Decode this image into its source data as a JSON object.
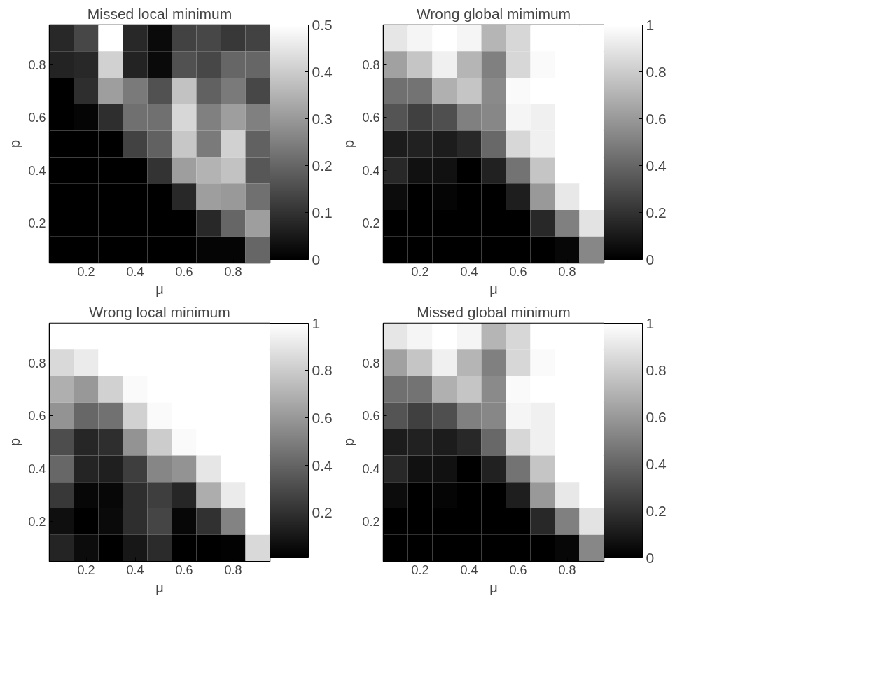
{
  "chart_data": [
    {
      "type": "heatmap",
      "title": "Missed local minimum",
      "xlabel": "μ",
      "ylabel": "p",
      "categories": [
        null,
        "0.2",
        null,
        "0.4",
        null,
        "0.6",
        null,
        "0.8",
        null
      ],
      "y_categories": [
        null,
        "0.8",
        null,
        "0.6",
        null,
        "0.4",
        null,
        "0.2",
        null
      ],
      "clim": [
        0,
        0.5
      ],
      "cticks": [
        0,
        0.1,
        0.2,
        0.3,
        0.4,
        0.5
      ],
      "cells": [
        [
          0.08,
          0.14,
          0.5,
          0.08,
          0.02,
          0.13,
          0.14,
          0.11,
          0.13
        ],
        [
          0.07,
          0.08,
          0.41,
          0.07,
          0.02,
          0.16,
          0.14,
          0.2,
          0.2
        ],
        [
          0,
          0.09,
          0.31,
          0.24,
          0.16,
          0.38,
          0.19,
          0.24,
          0.14
        ],
        [
          0,
          0.01,
          0.09,
          0.22,
          0.22,
          0.42,
          0.25,
          0.31,
          0.25
        ],
        [
          0,
          0,
          0,
          0.13,
          0.19,
          0.39,
          0.24,
          0.41,
          0.19
        ],
        [
          0,
          0,
          0,
          0,
          0.1,
          0.31,
          0.35,
          0.38,
          0.17
        ],
        [
          0,
          0,
          0,
          0,
          0,
          0.08,
          0.31,
          0.3,
          0.22
        ],
        [
          0,
          0,
          0,
          0,
          0,
          0,
          0.08,
          0.2,
          0.31
        ],
        [
          0,
          0,
          0,
          0,
          0,
          0,
          0.01,
          0.01,
          0.2
        ]
      ]
    },
    {
      "type": "heatmap",
      "title": "Wrong global mimimum",
      "xlabel": "μ",
      "ylabel": "p",
      "categories": [
        null,
        "0.2",
        null,
        "0.4",
        null,
        "0.6",
        null,
        "0.8",
        null
      ],
      "y_categories": [
        null,
        "0.8",
        null,
        "0.6",
        null,
        "0.4",
        null,
        "0.2",
        null
      ],
      "clim": [
        0,
        1
      ],
      "cticks": [
        0,
        0.2,
        0.4,
        0.6,
        0.8,
        1
      ],
      "cells": [
        [
          0.9,
          0.96,
          1,
          0.96,
          0.71,
          0.84,
          1,
          1,
          1
        ],
        [
          0.63,
          0.77,
          0.94,
          0.71,
          0.5,
          0.84,
          0.98,
          1,
          1
        ],
        [
          0.44,
          0.45,
          0.69,
          0.77,
          0.54,
          0.98,
          1,
          1,
          1
        ],
        [
          0.33,
          0.25,
          0.31,
          0.5,
          0.53,
          0.96,
          0.94,
          1,
          1
        ],
        [
          0.11,
          0.13,
          0.11,
          0.16,
          0.41,
          0.84,
          0.94,
          1,
          1
        ],
        [
          0.16,
          0.07,
          0.07,
          0,
          0.13,
          0.45,
          0.77,
          1,
          1
        ],
        [
          0.05,
          0,
          0.02,
          0,
          0,
          0.12,
          0.6,
          0.91,
          1
        ],
        [
          0,
          0,
          0,
          0,
          0,
          0,
          0.16,
          0.5,
          0.89
        ],
        [
          0,
          0,
          0,
          0,
          0,
          0,
          0,
          0.03,
          0.53
        ]
      ]
    },
    {
      "type": "heatmap",
      "title": "Wrong local minimum",
      "xlabel": "μ",
      "ylabel": "p",
      "categories": [
        null,
        "0.2",
        null,
        "0.4",
        null,
        "0.6",
        null,
        "0.8",
        null
      ],
      "y_categories": [
        null,
        "0.8",
        null,
        "0.6",
        null,
        "0.4",
        null,
        "0.2",
        null
      ],
      "clim": [
        0.01,
        1
      ],
      "cticks": [
        0.2,
        0.4,
        0.6,
        0.8,
        1
      ],
      "cells": [
        [
          1,
          1,
          1,
          1,
          1,
          1,
          1,
          1,
          1
        ],
        [
          0.85,
          0.92,
          1,
          1,
          1,
          1,
          1,
          1,
          1
        ],
        [
          0.69,
          0.6,
          0.82,
          0.98,
          1,
          1,
          1,
          1,
          1
        ],
        [
          0.58,
          0.41,
          0.45,
          0.82,
          0.98,
          1,
          1,
          1,
          1
        ],
        [
          0.31,
          0.16,
          0.19,
          0.58,
          0.8,
          0.98,
          1,
          1,
          1
        ],
        [
          0.41,
          0.15,
          0.13,
          0.25,
          0.53,
          0.58,
          0.9,
          1,
          1
        ],
        [
          0.23,
          0.04,
          0.04,
          0.19,
          0.25,
          0.16,
          0.68,
          0.92,
          1
        ],
        [
          0.07,
          0.01,
          0.05,
          0.19,
          0.28,
          0.04,
          0.2,
          0.52,
          1
        ],
        [
          0.15,
          0.06,
          0.01,
          0.1,
          0.18,
          0.01,
          0.01,
          0.02,
          0.85
        ]
      ]
    },
    {
      "type": "heatmap",
      "title": "Missed global minimum",
      "xlabel": "μ",
      "ylabel": "p",
      "categories": [
        null,
        "0.2",
        null,
        "0.4",
        null,
        "0.6",
        null,
        "0.8",
        null
      ],
      "y_categories": [
        null,
        "0.8",
        null,
        "0.6",
        null,
        "0.4",
        null,
        "0.2",
        null
      ],
      "clim": [
        0,
        1
      ],
      "cticks": [
        0,
        0.2,
        0.4,
        0.6,
        0.8,
        1
      ],
      "cells": [
        [
          0.9,
          0.96,
          1,
          0.96,
          0.71,
          0.84,
          1,
          1,
          1
        ],
        [
          0.63,
          0.77,
          0.94,
          0.71,
          0.5,
          0.84,
          0.98,
          1,
          1
        ],
        [
          0.44,
          0.45,
          0.69,
          0.77,
          0.54,
          0.98,
          1,
          1,
          1
        ],
        [
          0.33,
          0.25,
          0.31,
          0.5,
          0.53,
          0.96,
          0.94,
          1,
          1
        ],
        [
          0.11,
          0.13,
          0.11,
          0.16,
          0.41,
          0.84,
          0.94,
          1,
          1
        ],
        [
          0.16,
          0.07,
          0.07,
          0,
          0.13,
          0.45,
          0.77,
          1,
          1
        ],
        [
          0.05,
          0,
          0.02,
          0,
          0,
          0.12,
          0.6,
          0.91,
          1
        ],
        [
          0,
          0,
          0,
          0,
          0,
          0,
          0.16,
          0.5,
          0.89
        ],
        [
          0,
          0,
          0,
          0,
          0,
          0,
          0,
          0.03,
          0.53
        ]
      ]
    }
  ]
}
